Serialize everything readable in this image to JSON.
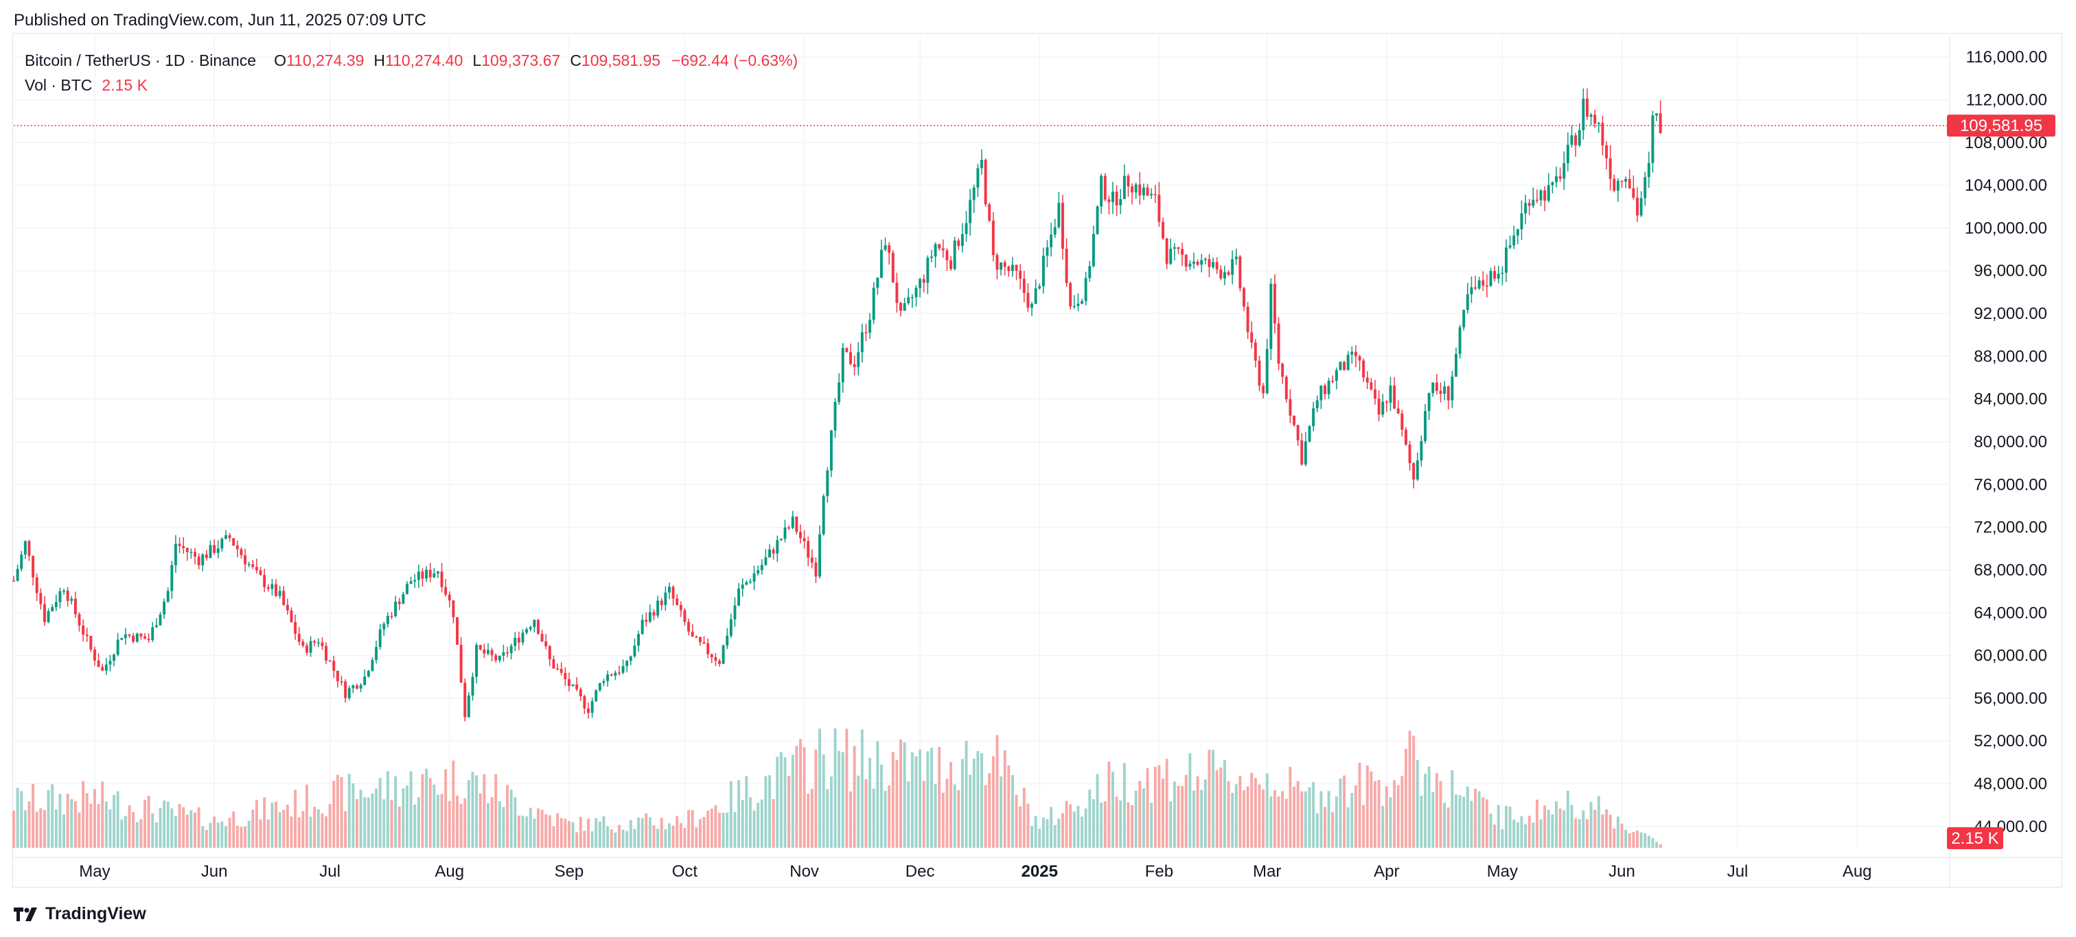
{
  "publish_line": "Published on TradingView.com, Jun 11, 2025 07:09 UTC",
  "footer": {
    "brand": "TradingView",
    "logo_icon": "tradingview-logo-icon"
  },
  "colors": {
    "up": "#089981",
    "down": "#f23645",
    "vol_up": "#9ed4cc",
    "vol_down": "#f7a9a7",
    "grid": "#f0f3fa",
    "axis_text": "#131722",
    "price_tag_bg": "#f23645"
  },
  "legend": {
    "symbol": "Bitcoin / TetherUS · 1D · Binance",
    "open_label": "O",
    "open": "110,274.39",
    "high_label": "H",
    "high": "110,274.40",
    "low_label": "L",
    "low": "109,373.67",
    "close_label": "C",
    "close": "109,581.95",
    "change": "−692.44 (−0.63%)",
    "vol_label": "Vol · BTC",
    "vol_value": "2.15 K"
  },
  "chart_data": {
    "type": "candlestick",
    "title": "Bitcoin / TetherUS · 1D · Binance",
    "y_ticks": [
      "116,000.00",
      "112,000.00",
      "108,000.00",
      "104,000.00",
      "100,000.00",
      "96,000.00",
      "92,000.00",
      "88,000.00",
      "84,000.00",
      "80,000.00",
      "76,000.00",
      "72,000.00",
      "68,000.00",
      "64,000.00",
      "60,000.00",
      "56,000.00",
      "52,000.00",
      "48,000.00",
      "44,000.00"
    ],
    "ylim": [
      42000,
      118000
    ],
    "x_ticks": [
      "May",
      "Jun",
      "Jul",
      "Aug",
      "Sep",
      "Oct",
      "Nov",
      "Dec",
      "2025",
      "Feb",
      "Mar",
      "Apr",
      "May",
      "Jun",
      "Jul",
      "Aug"
    ],
    "x_range": [
      "2024-04-10",
      "2025-08-25"
    ],
    "last_price": 109581.95,
    "last_price_label": "109,581.95",
    "last_volume_label": "2.15 K",
    "grid": true,
    "approx_close_path": [
      [
        "2024-04-10",
        67000
      ],
      [
        "2024-04-13",
        70500
      ],
      [
        "2024-04-18",
        63500
      ],
      [
        "2024-04-23",
        66500
      ],
      [
        "2024-04-30",
        60500
      ],
      [
        "2024-05-03",
        58500
      ],
      [
        "2024-05-08",
        62000
      ],
      [
        "2024-05-15",
        61500
      ],
      [
        "2024-05-20",
        66000
      ],
      [
        "2024-05-22",
        70500
      ],
      [
        "2024-05-28",
        69000
      ],
      [
        "2024-06-05",
        71000
      ],
      [
        "2024-06-12",
        67500
      ],
      [
        "2024-06-18",
        65500
      ],
      [
        "2024-06-24",
        60500
      ],
      [
        "2024-06-28",
        61500
      ],
      [
        "2024-07-05",
        56500
      ],
      [
        "2024-07-10",
        58000
      ],
      [
        "2024-07-15",
        63000
      ],
      [
        "2024-07-22",
        67000
      ],
      [
        "2024-07-29",
        68000
      ],
      [
        "2024-08-02",
        64000
      ],
      [
        "2024-08-05",
        54500
      ],
      [
        "2024-08-08",
        60500
      ],
      [
        "2024-08-14",
        59500
      ],
      [
        "2024-08-23",
        63500
      ],
      [
        "2024-08-27",
        59500
      ],
      [
        "2024-09-06",
        55000
      ],
      [
        "2024-09-10",
        58000
      ],
      [
        "2024-09-16",
        59000
      ],
      [
        "2024-09-20",
        63000
      ],
      [
        "2024-09-27",
        66000
      ],
      [
        "2024-10-03",
        61500
      ],
      [
        "2024-10-10",
        59500
      ],
      [
        "2024-10-15",
        66000
      ],
      [
        "2024-10-21",
        68500
      ],
      [
        "2024-10-29",
        72500
      ],
      [
        "2024-11-04",
        68000
      ],
      [
        "2024-11-06",
        75500
      ],
      [
        "2024-11-11",
        88000
      ],
      [
        "2024-11-14",
        87500
      ],
      [
        "2024-11-18",
        92000
      ],
      [
        "2024-11-22",
        99000
      ],
      [
        "2024-11-26",
        91500
      ],
      [
        "2024-12-02",
        95500
      ],
      [
        "2024-12-05",
        98500
      ],
      [
        "2024-12-09",
        97000
      ],
      [
        "2024-12-13",
        101000
      ],
      [
        "2024-12-17",
        106000
      ],
      [
        "2024-12-20",
        97000
      ],
      [
        "2024-12-26",
        95500
      ],
      [
        "2024-12-30",
        92500
      ],
      [
        "2025-01-06",
        102000
      ],
      [
        "2025-01-09",
        92500
      ],
      [
        "2025-01-13",
        94500
      ],
      [
        "2025-01-17",
        104000
      ],
      [
        "2025-01-20",
        102500
      ],
      [
        "2025-01-24",
        104500
      ],
      [
        "2025-01-31",
        102500
      ],
      [
        "2025-02-03",
        97500
      ],
      [
        "2025-02-10",
        97000
      ],
      [
        "2025-02-17",
        96000
      ],
      [
        "2025-02-21",
        96500
      ],
      [
        "2025-02-25",
        88500
      ],
      [
        "2025-02-28",
        84500
      ],
      [
        "2025-03-02",
        94000
      ],
      [
        "2025-03-04",
        87500
      ],
      [
        "2025-03-10",
        78500
      ],
      [
        "2025-03-14",
        84000
      ],
      [
        "2025-03-19",
        86500
      ],
      [
        "2025-03-24",
        88000
      ],
      [
        "2025-03-30",
        82500
      ],
      [
        "2025-04-02",
        85000
      ],
      [
        "2025-04-08",
        76500
      ],
      [
        "2025-04-12",
        85000
      ],
      [
        "2025-04-17",
        84500
      ],
      [
        "2025-04-22",
        93500
      ],
      [
        "2025-05-01",
        96500
      ],
      [
        "2025-05-08",
        103000
      ],
      [
        "2025-05-14",
        103500
      ],
      [
        "2025-05-21",
        109500
      ],
      [
        "2025-05-22",
        111500
      ],
      [
        "2025-05-26",
        109500
      ],
      [
        "2025-05-30",
        104000
      ],
      [
        "2025-06-02",
        105500
      ],
      [
        "2025-06-05",
        101500
      ],
      [
        "2025-06-08",
        105500
      ],
      [
        "2025-06-09",
        110000
      ],
      [
        "2025-06-10",
        110200
      ],
      [
        "2025-06-11",
        109582
      ]
    ],
    "approx_volume_path_k": [
      [
        "2024-04-10",
        28
      ],
      [
        "2024-05-01",
        30
      ],
      [
        "2024-06-01",
        16
      ],
      [
        "2024-07-05",
        33
      ],
      [
        "2024-08-05",
        42
      ],
      [
        "2024-09-01",
        14
      ],
      [
        "2024-10-01",
        16
      ],
      [
        "2024-11-06",
        56
      ],
      [
        "2024-11-12",
        54
      ],
      [
        "2024-12-05",
        48
      ],
      [
        "2024-12-19",
        58
      ],
      [
        "2025-01-01",
        14
      ],
      [
        "2025-01-20",
        40
      ],
      [
        "2025-02-03",
        44
      ],
      [
        "2025-03-03",
        42
      ],
      [
        "2025-03-10",
        31
      ],
      [
        "2025-04-03",
        42
      ],
      [
        "2025-04-07",
        52
      ],
      [
        "2025-05-01",
        18
      ],
      [
        "2025-05-22",
        28
      ],
      [
        "2025-06-11",
        2.15
      ]
    ],
    "volume_max_k": 60
  }
}
